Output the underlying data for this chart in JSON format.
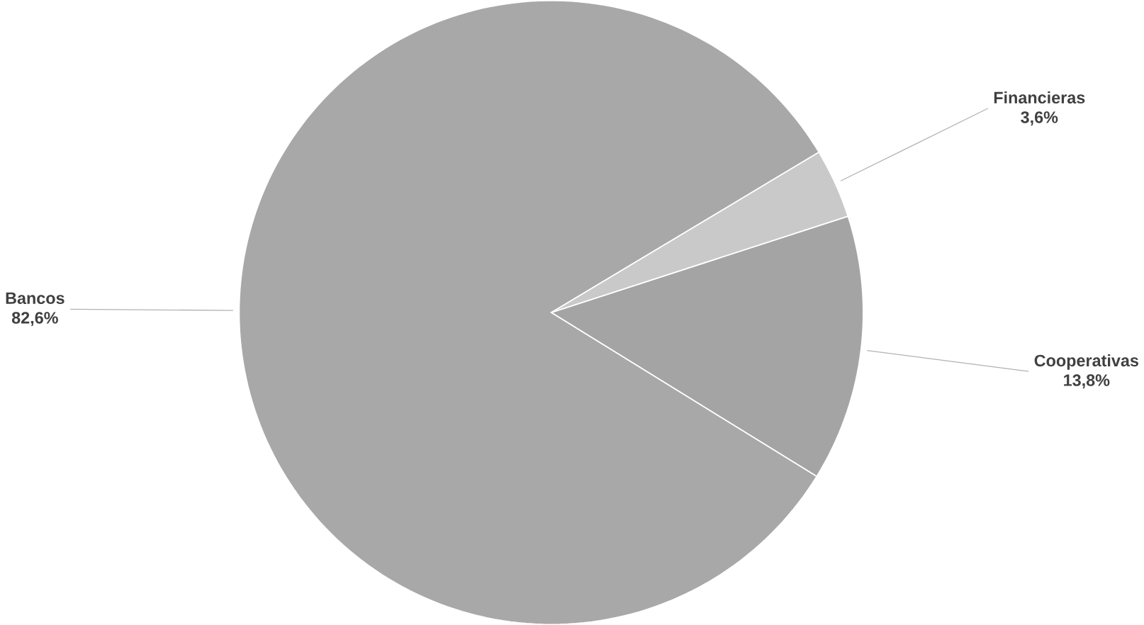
{
  "chart_data": {
    "type": "pie",
    "categories": [
      "Cooperativas",
      "Financieras",
      "Bancos"
    ],
    "values": [
      13.8,
      3.6,
      82.6
    ],
    "value_labels": [
      "13,8%",
      "3,6%",
      "82,6%"
    ],
    "colors": [
      "#a4a4a4",
      "#c9c9c9",
      "#a8a8a8"
    ]
  }
}
